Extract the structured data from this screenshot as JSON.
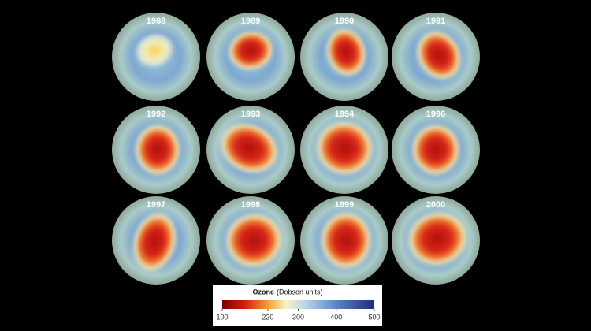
{
  "panels": {
    "years": [
      "1988",
      "1989",
      "1990",
      "1991",
      "1992",
      "1993",
      "1994",
      "1996",
      "1997",
      "1998",
      "1999",
      "2000"
    ]
  },
  "legend": {
    "title": "Ozone",
    "unit": "(Dobson units)",
    "lim": [
      100,
      500
    ],
    "ticks": [
      100,
      220,
      300,
      400,
      500
    ]
  }
}
